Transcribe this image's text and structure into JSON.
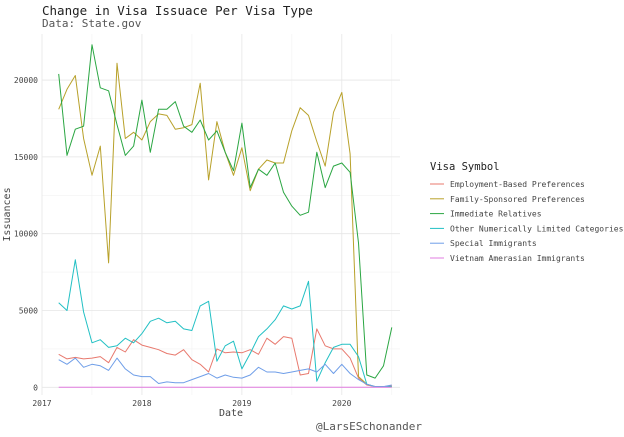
{
  "chart_data": {
    "type": "line",
    "title": "Change in Visa Issuace Per Visa Type",
    "subtitle": "Data: State.gov",
    "caption": "@LarsESchonander",
    "xlabel": "Date",
    "ylabel": "Issuances",
    "xlim": [
      "2017-01-01",
      "2020-07-31"
    ],
    "ylim": [
      -500,
      23000
    ],
    "x_ticks": [
      "2017",
      "2018",
      "2019",
      "2020"
    ],
    "y_ticks": [
      0,
      5000,
      10000,
      15000,
      20000
    ],
    "y_tick_labels": [
      "0",
      "5000",
      "10000",
      "15000",
      "20000"
    ],
    "grid": true,
    "legend_title": "Visa Symbol",
    "legend_position": "right",
    "x": [
      "2017-03",
      "2017-04",
      "2017-05",
      "2017-06",
      "2017-07",
      "2017-08",
      "2017-09",
      "2017-10",
      "2017-11",
      "2017-12",
      "2018-01",
      "2018-02",
      "2018-03",
      "2018-04",
      "2018-05",
      "2018-06",
      "2018-07",
      "2018-08",
      "2018-09",
      "2018-10",
      "2018-11",
      "2018-12",
      "2019-01",
      "2019-02",
      "2019-03",
      "2019-04",
      "2019-05",
      "2019-06",
      "2019-07",
      "2019-08",
      "2019-09",
      "2019-10",
      "2019-11",
      "2019-12",
      "2020-01",
      "2020-02",
      "2020-03",
      "2020-04",
      "2020-05",
      "2020-06",
      "2020-07"
    ],
    "series": [
      {
        "name": "Employment-Based Preferences",
        "color": "#e8796e",
        "values": [
          2150,
          1850,
          1950,
          1850,
          1900,
          2000,
          1600,
          2600,
          2300,
          3100,
          2750,
          2600,
          2450,
          2200,
          2100,
          2450,
          1800,
          1500,
          1000,
          2500,
          2250,
          2300,
          2250,
          2450,
          2150,
          3200,
          2800,
          3300,
          3200,
          800,
          900,
          3800,
          2700,
          2500,
          2500,
          1900,
          600,
          150,
          50,
          50,
          100
        ]
      },
      {
        "name": "Family-Sponsored Preferences",
        "color": "#b8a12a",
        "values": [
          18100,
          19400,
          20300,
          16200,
          13800,
          15700,
          8100,
          21100,
          16200,
          16600,
          16100,
          17300,
          17800,
          17700,
          16800,
          16900,
          17100,
          19800,
          13500,
          17300,
          15300,
          13800,
          15600,
          12800,
          14200,
          14800,
          14600,
          14600,
          16700,
          18200,
          17700,
          16000,
          14400,
          17900,
          19200,
          15200,
          700,
          200,
          50,
          50,
          50
        ]
      },
      {
        "name": "Immediate Relatives",
        "color": "#2aa642",
        "values": [
          20400,
          15100,
          16800,
          17000,
          22300,
          19500,
          19300,
          17100,
          15100,
          15700,
          18700,
          15300,
          18100,
          18100,
          18600,
          17000,
          16600,
          17400,
          16100,
          16700,
          15300,
          14100,
          17200,
          13000,
          14200,
          13800,
          14600,
          12700,
          11800,
          11200,
          11400,
          15300,
          13000,
          14400,
          14600,
          14000,
          9400,
          800,
          600,
          1400,
          3900
        ]
      },
      {
        "name": "Other Numerically Limited Categories",
        "color": "#22c0c4",
        "values": [
          5500,
          5000,
          8300,
          4900,
          2900,
          3100,
          2600,
          2700,
          3200,
          2900,
          3500,
          4300,
          4500,
          4200,
          4300,
          3800,
          3700,
          5300,
          5600,
          1700,
          2700,
          3000,
          1200,
          2200,
          3300,
          3800,
          4400,
          5300,
          5100,
          5300,
          6900,
          400,
          1600,
          2600,
          2800,
          2800,
          2000,
          200,
          50,
          50,
          50
        ]
      },
      {
        "name": "Special Immigrants",
        "color": "#6f9ee8",
        "values": [
          1800,
          1500,
          1900,
          1300,
          1500,
          1400,
          1100,
          1900,
          1200,
          800,
          700,
          700,
          250,
          350,
          300,
          300,
          500,
          700,
          900,
          600,
          800,
          650,
          600,
          800,
          1300,
          1000,
          1000,
          900,
          1000,
          1100,
          1200,
          1000,
          1500,
          900,
          1500,
          900,
          500,
          200,
          50,
          50,
          150
        ]
      },
      {
        "name": "Vietnam Amerasian Immigrants",
        "color": "#e27ce0",
        "values": [
          5,
          5,
          5,
          5,
          5,
          5,
          5,
          5,
          5,
          5,
          5,
          5,
          5,
          5,
          5,
          5,
          5,
          5,
          5,
          5,
          5,
          5,
          5,
          5,
          5,
          5,
          5,
          5,
          5,
          5,
          5,
          5,
          5,
          5,
          5,
          5,
          5,
          5,
          5,
          5,
          5
        ]
      }
    ]
  }
}
